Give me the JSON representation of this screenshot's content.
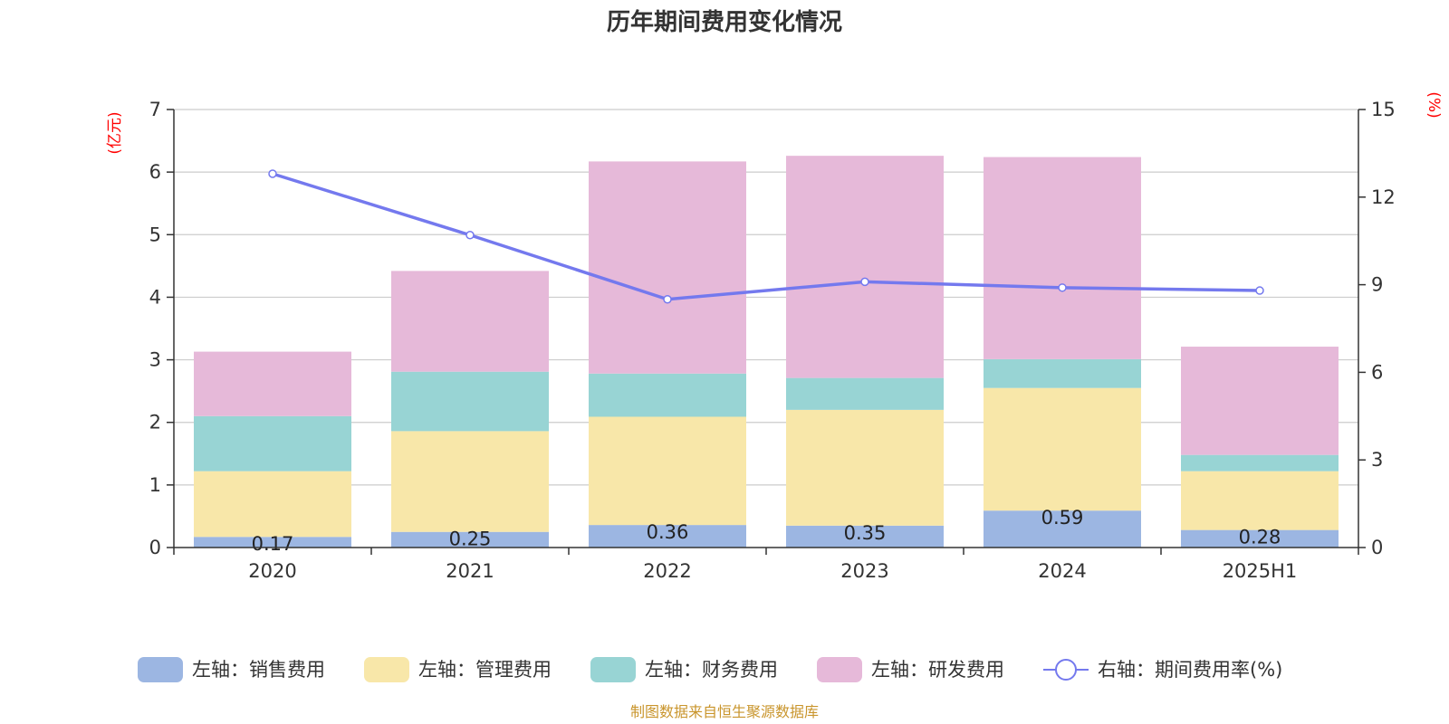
{
  "title": "历年期间费用变化情况",
  "left_unit": "(亿元)",
  "right_unit": "(%)",
  "source": "制图数据来自恒生聚源数据库",
  "colors": {
    "sales": "#9cb6e2",
    "mgmt": "#f8e7a9",
    "fin": "#98d4d4",
    "rd": "#e6b9d9",
    "rate": "#7479ee",
    "unit_text": "#ff0000",
    "source_text": "#c9952c"
  },
  "chart_data": {
    "type": "bar",
    "categories": [
      "2020",
      "2021",
      "2022",
      "2023",
      "2024",
      "2025H1"
    ],
    "series": [
      {
        "key": "sales",
        "name": "左轴：销售费用",
        "axis": "left",
        "values": [
          0.17,
          0.25,
          0.36,
          0.35,
          0.59,
          0.28
        ]
      },
      {
        "key": "mgmt",
        "name": "左轴：管理费用",
        "axis": "left",
        "values": [
          1.05,
          1.61,
          1.73,
          1.85,
          1.96,
          0.94
        ]
      },
      {
        "key": "fin",
        "name": "左轴：财务费用",
        "axis": "left",
        "values": [
          0.88,
          0.95,
          0.69,
          0.51,
          0.46,
          0.26
        ]
      },
      {
        "key": "rd",
        "name": "左轴：研发费用",
        "axis": "left",
        "values": [
          1.03,
          1.61,
          3.39,
          3.55,
          3.23,
          1.73
        ]
      },
      {
        "key": "rate",
        "name": "右轴：期间费用率(%)",
        "axis": "right",
        "type": "line",
        "values": [
          12.8,
          10.7,
          8.5,
          9.1,
          8.9,
          8.8
        ]
      }
    ],
    "data_labels_series": "sales",
    "y_left": {
      "min": 0,
      "max": 7,
      "ticks": [
        0,
        1,
        2,
        3,
        4,
        5,
        6,
        7
      ]
    },
    "y_right": {
      "min": 0,
      "max": 15,
      "ticks": [
        0,
        3,
        6,
        9,
        12,
        15
      ]
    },
    "grid": true,
    "legend_position": "bottom"
  }
}
